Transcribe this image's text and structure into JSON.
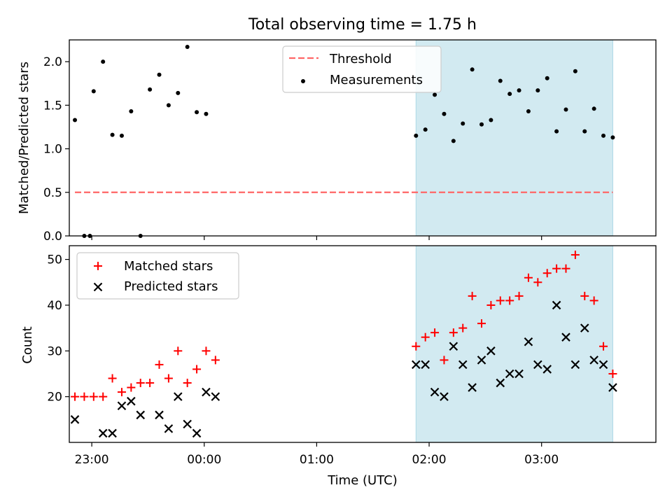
{
  "chart_data": [
    {
      "type": "scatter",
      "title": "Total observing time = 1.75 h",
      "xlabel": "",
      "ylabel": "Matched/Predicted stars",
      "xlim": [
        "22:48",
        "04:01"
      ],
      "ylim": [
        0,
        2.25
      ],
      "yticks": [
        0.0,
        0.5,
        1.0,
        1.5,
        2.0
      ],
      "ytick_labels": [
        "0.0",
        "0.5",
        "1.0",
        "1.5",
        "2.0"
      ],
      "xticks": [
        "23:00",
        "00:00",
        "01:00",
        "02:00",
        "03:00"
      ],
      "xtick_labels_shown": false,
      "legend_position": "top-center",
      "highlight_span": {
        "start": "01:53",
        "end": "03:38",
        "color": "#add8e6"
      },
      "series": [
        {
          "name": "Threshold",
          "style": "dashed-line",
          "color": "#ff6666",
          "x": [
            "22:51",
            "03:38"
          ],
          "values": [
            0.5,
            0.5
          ]
        },
        {
          "name": "Measurements",
          "style": "dot",
          "color": "#000000",
          "x": [
            "22:51",
            "22:56",
            "22:59",
            "23:01",
            "23:06",
            "23:11",
            "23:16",
            "23:21",
            "23:26",
            "23:31",
            "23:36",
            "23:41",
            "23:46",
            "23:51",
            "23:56",
            "00:01",
            "00:06",
            "01:53",
            "01:58",
            "02:03",
            "02:08",
            "02:13",
            "02:18",
            "02:23",
            "02:28",
            "02:33",
            "02:38",
            "02:43",
            "02:48",
            "02:53",
            "02:58",
            "03:03",
            "03:08",
            "03:13",
            "03:18",
            "03:23",
            "03:28",
            "03:33",
            "03:38"
          ],
          "values": [
            1.33,
            0.0,
            0.0,
            1.66,
            2.0,
            1.16,
            1.15,
            1.43,
            0.0,
            1.68,
            1.85,
            1.5,
            1.64,
            2.17,
            1.42,
            1.4,
            null,
            1.15,
            1.22,
            1.62,
            1.4,
            1.09,
            1.29,
            1.91,
            1.28,
            1.33,
            1.78,
            1.63,
            1.67,
            1.43,
            1.67,
            1.81,
            1.2,
            1.45,
            1.89,
            1.2,
            1.46,
            1.15,
            1.13
          ]
        }
      ]
    },
    {
      "type": "scatter",
      "title": "",
      "xlabel": "Time (UTC)",
      "ylabel": "Count",
      "xlim": [
        "22:48",
        "04:01"
      ],
      "ylim": [
        10,
        53
      ],
      "yticks": [
        20,
        30,
        40,
        50
      ],
      "ytick_labels": [
        "20",
        "30",
        "40",
        "50"
      ],
      "xticks": [
        "23:00",
        "00:00",
        "01:00",
        "02:00",
        "03:00"
      ],
      "xtick_labels": [
        "23:00",
        "00:00",
        "01:00",
        "02:00",
        "03:00"
      ],
      "legend_position": "top-left",
      "highlight_span": {
        "start": "01:53",
        "end": "03:38",
        "color": "#add8e6"
      },
      "series": [
        {
          "name": "Matched stars",
          "marker": "plus",
          "color": "#ff0000",
          "x": [
            "22:51",
            "22:56",
            "23:01",
            "23:06",
            "23:11",
            "23:16",
            "23:21",
            "23:26",
            "23:31",
            "23:36",
            "23:41",
            "23:46",
            "23:51",
            "23:56",
            "00:01",
            "00:06",
            "00:11",
            "01:53",
            "01:58",
            "02:03",
            "02:08",
            "02:13",
            "02:18",
            "02:23",
            "02:28",
            "02:33",
            "02:38",
            "02:43",
            "02:48",
            "02:53",
            "02:58",
            "03:03",
            "03:08",
            "03:13",
            "03:18",
            "03:23",
            "03:28",
            "03:33",
            "03:38"
          ],
          "values": [
            20,
            20,
            20,
            20,
            24,
            21,
            22,
            23,
            23,
            27,
            24,
            30,
            23,
            26,
            30,
            28,
            null,
            31,
            33,
            34,
            28,
            34,
            35,
            42,
            36,
            40,
            41,
            41,
            42,
            46,
            45,
            47,
            48,
            48,
            51,
            42,
            41,
            31,
            25
          ]
        },
        {
          "name": "Predicted stars",
          "marker": "x",
          "color": "#000000",
          "x": [
            "22:51",
            "23:06",
            "23:11",
            "23:16",
            "23:21",
            "23:26",
            "23:36",
            "23:41",
            "23:46",
            "23:51",
            "23:56",
            "00:01",
            "00:06",
            "01:53",
            "01:58",
            "02:03",
            "02:08",
            "02:13",
            "02:18",
            "02:23",
            "02:28",
            "02:33",
            "02:38",
            "02:43",
            "02:48",
            "02:53",
            "02:58",
            "03:03",
            "03:08",
            "03:13",
            "03:18",
            "03:23",
            "03:28",
            "03:33",
            "03:38"
          ],
          "values": [
            15,
            12,
            12,
            18,
            19,
            16,
            16,
            13,
            20,
            14,
            12,
            21,
            20,
            27,
            27,
            21,
            20,
            31,
            27,
            22,
            28,
            30,
            23,
            25,
            25,
            32,
            27,
            26,
            40,
            33,
            27,
            35,
            28,
            27,
            22
          ]
        }
      ]
    }
  ]
}
